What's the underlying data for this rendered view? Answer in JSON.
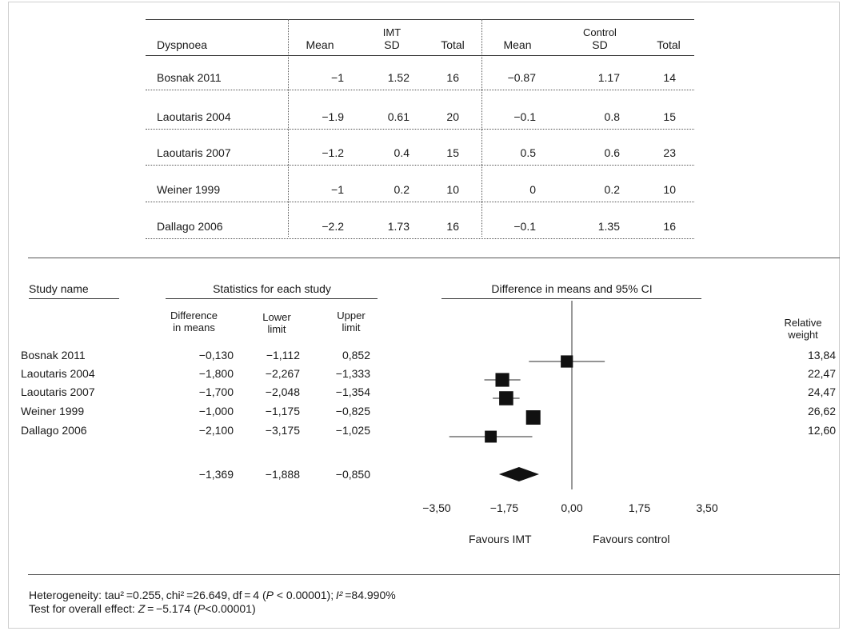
{
  "upper_table": {
    "outcome_header": "Dyspnoea",
    "group_imt": "IMT",
    "group_control": "Control",
    "col_mean": "Mean",
    "col_sd": "SD",
    "col_total": "Total",
    "rows": [
      {
        "study": "Bosnak 2011",
        "imt_mean": "−1",
        "imt_sd": "1.52",
        "imt_total": "16",
        "ctl_mean": "−0.87",
        "ctl_sd": "1.17",
        "ctl_total": "14"
      },
      {
        "study": "Laoutaris 2004",
        "imt_mean": "−1.9",
        "imt_sd": "0.61",
        "imt_total": "20",
        "ctl_mean": "−0.1",
        "ctl_sd": "0.8",
        "ctl_total": "15"
      },
      {
        "study": "Laoutaris 2007",
        "imt_mean": "−1.2",
        "imt_sd": "0.4",
        "imt_total": "15",
        "ctl_mean": "0.5",
        "ctl_sd": "0.6",
        "ctl_total": "23"
      },
      {
        "study": "Weiner 1999",
        "imt_mean": "−1",
        "imt_sd": "0.2",
        "imt_total": "10",
        "ctl_mean": "0",
        "ctl_sd": "0.2",
        "ctl_total": "10"
      },
      {
        "study": "Dallago 2006",
        "imt_mean": "−2.2",
        "imt_sd": "1.73",
        "imt_total": "16",
        "ctl_mean": "−0.1",
        "ctl_sd": "1.35",
        "ctl_total": "16"
      }
    ]
  },
  "forest": {
    "study_name_header": "Study name",
    "stats_header": "Statistics for each study",
    "diff_col": [
      "Difference",
      "in means"
    ],
    "lower_col": [
      "Lower",
      "limit"
    ],
    "upper_col": [
      "Upper",
      "limit"
    ],
    "plot_header": "Difference in means and 95% CI",
    "weight_col": [
      "Relative",
      "weight"
    ],
    "favours_left": "Favours IMT",
    "favours_right": "Favours control",
    "pooled": {
      "diff": "−1,369",
      "lower": "−1,888",
      "upper": "−0,850"
    }
  },
  "chart_data": {
    "type": "forest",
    "x_ticks": [
      "−3,50",
      "−1,75",
      "0,00",
      "1,75",
      "3,50"
    ],
    "x_tick_values": [
      -3.5,
      -1.75,
      0,
      1.75,
      3.5
    ],
    "xlim": [
      -3.5,
      3.5
    ],
    "studies": [
      {
        "name": "Bosnak 2011",
        "diff": -0.13,
        "lower": -1.112,
        "upper": 0.852,
        "weight": 13.84,
        "diff_text": "−0,130",
        "lower_text": "−1,112",
        "upper_text": "0,852",
        "weight_text": "13,84"
      },
      {
        "name": "Laoutaris 2004",
        "diff": -1.8,
        "lower": -2.267,
        "upper": -1.333,
        "weight": 22.47,
        "diff_text": "−1,800",
        "lower_text": "−2,267",
        "upper_text": "−1,333",
        "weight_text": "22,47"
      },
      {
        "name": "Laoutaris 2007",
        "diff": -1.7,
        "lower": -2.048,
        "upper": -1.354,
        "weight": 24.47,
        "diff_text": "−1,700",
        "lower_text": "−2,048",
        "upper_text": "−1,354",
        "weight_text": "24,47"
      },
      {
        "name": "Weiner 1999",
        "diff": -1.0,
        "lower": -1.175,
        "upper": -0.825,
        "weight": 26.62,
        "diff_text": "−1,000",
        "lower_text": "−1,175",
        "upper_text": "−0,825",
        "weight_text": "26,62"
      },
      {
        "name": "Dallago 2006",
        "diff": -2.1,
        "lower": -3.175,
        "upper": -1.025,
        "weight": 12.6,
        "diff_text": "−2,100",
        "lower_text": "−3,175",
        "upper_text": "−1,025",
        "weight_text": "12,60"
      }
    ],
    "pooled": {
      "diff": -1.369,
      "lower": -1.888,
      "upper": -0.85
    }
  },
  "footer": {
    "heterogeneity_prefix": "Heterogeneity: tau² =0.255, chi² =26.649, df = 4 (",
    "heterogeneity_p": "P",
    "heterogeneity_mid": " < 0.00001); ",
    "heterogeneity_i": "I²",
    "heterogeneity_suffix": " =84.990%",
    "overall_prefix": "Test for overall effect: ",
    "overall_z": "Z",
    "overall_mid": " = −5.174 (",
    "overall_p": "P",
    "overall_suffix": "<0.00001)"
  }
}
